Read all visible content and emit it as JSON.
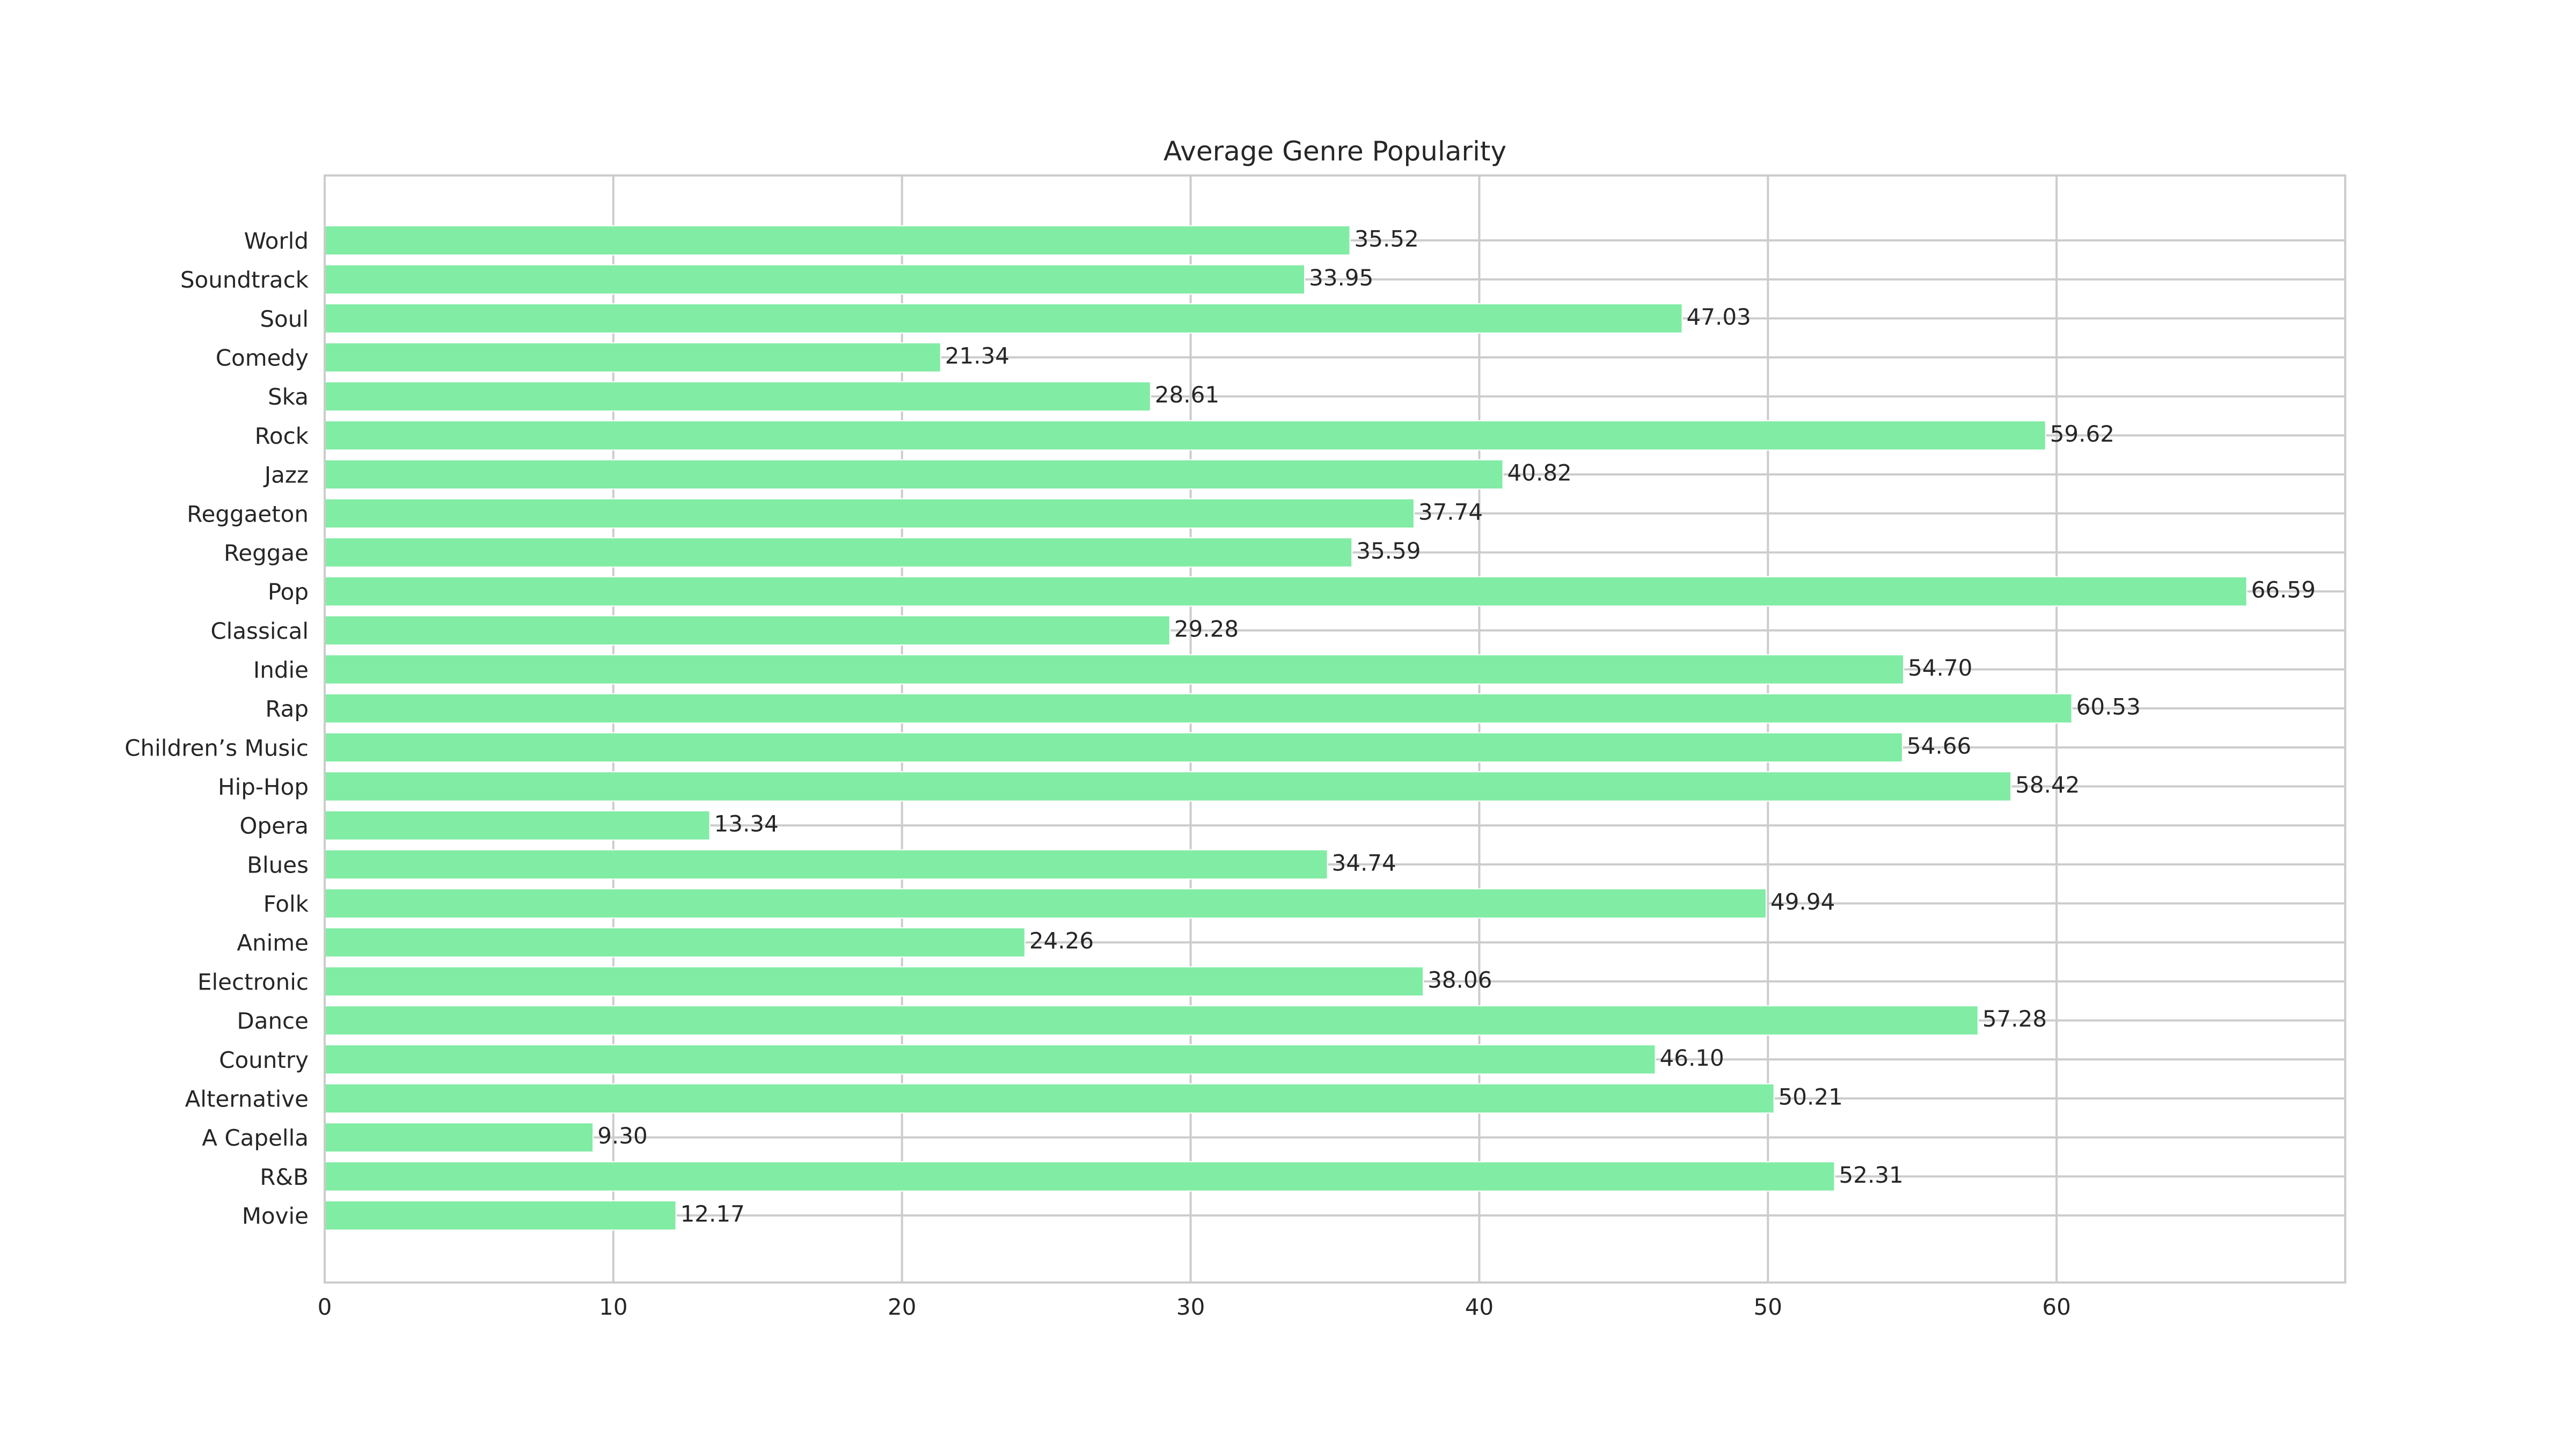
{
  "chart_data": {
    "type": "bar",
    "orientation": "horizontal",
    "title": "Average Genre Popularity",
    "xlabel": "",
    "ylabel": "",
    "xlim": [
      0,
      70
    ],
    "xticks": [
      0,
      10,
      20,
      30,
      40,
      50,
      60
    ],
    "xtick_labels": [
      "0",
      "10",
      "20",
      "30",
      "40",
      "50",
      "60"
    ],
    "grid": true,
    "bar_color": "#81ECA4",
    "categories": [
      "World",
      "Soundtrack",
      "Soul",
      "Comedy",
      "Ska",
      "Rock",
      "Jazz",
      "Reggaeton",
      "Reggae",
      "Pop",
      "Classical",
      "Indie",
      "Rap",
      "Children’s Music",
      "Hip-Hop",
      "Opera",
      "Blues",
      "Folk",
      "Anime",
      "Electronic",
      "Dance",
      "Country",
      "Alternative",
      "A Capella",
      "R&B",
      "Movie"
    ],
    "values": [
      35.52,
      33.95,
      47.03,
      21.34,
      28.61,
      59.62,
      40.82,
      37.74,
      35.59,
      66.59,
      29.28,
      54.7,
      60.53,
      54.66,
      58.42,
      13.34,
      34.74,
      49.94,
      24.26,
      38.06,
      57.28,
      46.1,
      50.21,
      9.3,
      52.31,
      12.17
    ],
    "value_labels": [
      "35.52",
      "33.95",
      "47.03",
      "21.34",
      "28.61",
      "59.62",
      "40.82",
      "37.74",
      "35.59",
      "66.59",
      "29.28",
      "54.70",
      "60.53",
      "54.66",
      "58.42",
      "13.34",
      "34.74",
      "49.94",
      "24.26",
      "38.06",
      "57.28",
      "46.10",
      "50.21",
      "9.30",
      "52.31",
      "12.17"
    ]
  }
}
